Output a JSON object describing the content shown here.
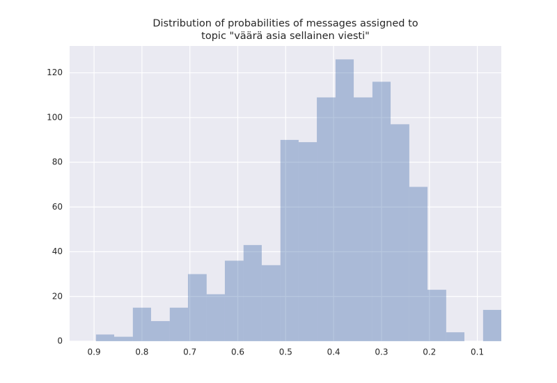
{
  "chart_data": {
    "type": "histogram",
    "title": [
      "Distribution of probabilities of messages assigned to",
      "topic \"väärä asia sellainen viesti\""
    ],
    "bins": [
      0.05,
      0.088,
      0.127,
      0.165,
      0.204,
      0.242,
      0.281,
      0.319,
      0.358,
      0.396,
      0.435,
      0.473,
      0.511,
      0.55,
      0.588,
      0.627,
      0.665,
      0.704,
      0.742,
      0.781,
      0.819,
      0.858,
      0.896
    ],
    "values": [
      14,
      0,
      4,
      23,
      69,
      97,
      116,
      109,
      126,
      109,
      89,
      90,
      34,
      43,
      36,
      21,
      30,
      15,
      9,
      15,
      2,
      3
    ],
    "color": "#4c72b0",
    "xlim": [
      0.951,
      0.05
    ],
    "xticks": [
      0.9,
      0.8,
      0.7,
      0.6,
      0.5,
      0.4,
      0.3,
      0.2,
      0.1
    ],
    "ylim": [
      0,
      132
    ],
    "yticks": [
      0,
      20,
      40,
      60,
      80,
      100,
      120
    ],
    "grid": true
  }
}
